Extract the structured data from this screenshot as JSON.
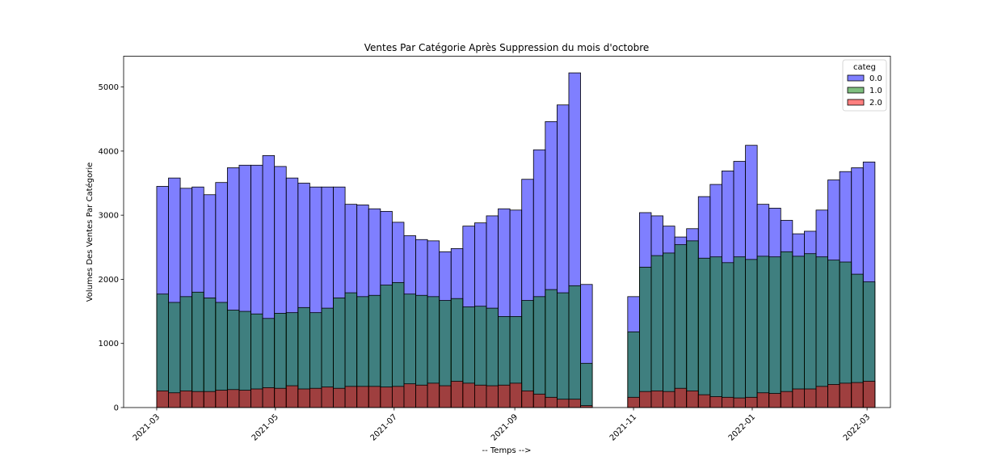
{
  "chart_data": {
    "type": "bar",
    "title": "Ventes Par Catégorie Après Suppression du mois d'octobre",
    "xlabel": "-- Temps -->",
    "ylabel": "Volumes Des Ventes Par Catégorie",
    "ylim": [
      0,
      5480
    ],
    "y_ticks": [
      0,
      1000,
      2000,
      3000,
      4000,
      5000
    ],
    "x_range": [
      "2021-02-12",
      "2022-03-13"
    ],
    "x_ticks": [
      "2021-03",
      "2021-05",
      "2021-07",
      "2021-09",
      "2021-11",
      "2022-01",
      "2022-03"
    ],
    "bin_width_days": 6.05,
    "legend": {
      "title": "categ",
      "placement": "top-right"
    },
    "grid": false,
    "segments": [
      {
        "start": "2021-03-01",
        "series": [
          {
            "name": "0.0",
            "color": "#0000ff",
            "values": [
              3450,
              3580,
              3420,
              3440,
              3320,
              3510,
              3740,
              3780,
              3780,
              3930,
              3760,
              3580,
              3500,
              3440,
              3440,
              3440,
              3170,
              3160,
              3100,
              3060,
              2890,
              2680,
              2620,
              2600,
              2430,
              2480,
              2830,
              2880,
              2990,
              3100,
              3080,
              3560,
              4020,
              4460,
              4720,
              5220,
              1920
            ]
          },
          {
            "name": "1.0",
            "color": "#008000",
            "values": [
              1770,
              1640,
              1730,
              1800,
              1710,
              1640,
              1520,
              1500,
              1460,
              1390,
              1470,
              1480,
              1560,
              1480,
              1550,
              1710,
              1790,
              1730,
              1750,
              1910,
              1950,
              1770,
              1750,
              1730,
              1670,
              1700,
              1570,
              1580,
              1550,
              1420,
              1420,
              1670,
              1730,
              1840,
              1790,
              1900,
              690
            ]
          },
          {
            "name": "2.0",
            "color": "#ff0000",
            "values": [
              260,
              230,
              260,
              250,
              250,
              270,
              280,
              270,
              290,
              310,
              300,
              340,
              290,
              300,
              320,
              300,
              330,
              330,
              330,
              320,
              330,
              370,
              350,
              380,
              340,
              410,
              380,
              350,
              340,
              350,
              380,
              260,
              210,
              160,
              130,
              130,
              30
            ]
          }
        ]
      },
      {
        "start": "2021-10-29",
        "series": [
          {
            "name": "0.0",
            "color": "#0000ff",
            "values": [
              1730,
              3040,
              2990,
              2830,
              2660,
              2790,
              3290,
              3480,
              3690,
              3840,
              4090,
              3170,
              3110,
              2920,
              2710,
              2750,
              3080,
              3550,
              3680,
              3740,
              3830
            ]
          },
          {
            "name": "1.0",
            "color": "#008000",
            "values": [
              1180,
              2190,
              2370,
              2410,
              2540,
              2600,
              2330,
              2350,
              2260,
              2350,
              2310,
              2360,
              2350,
              2430,
              2360,
              2400,
              2350,
              2300,
              2270,
              2080,
              1960
            ]
          },
          {
            "name": "2.0",
            "color": "#ff0000",
            "values": [
              160,
              250,
              260,
              250,
              300,
              260,
              200,
              170,
              160,
              150,
              160,
              230,
              220,
              250,
              290,
              290,
              330,
              360,
              380,
              390,
              410
            ]
          }
        ]
      }
    ]
  }
}
